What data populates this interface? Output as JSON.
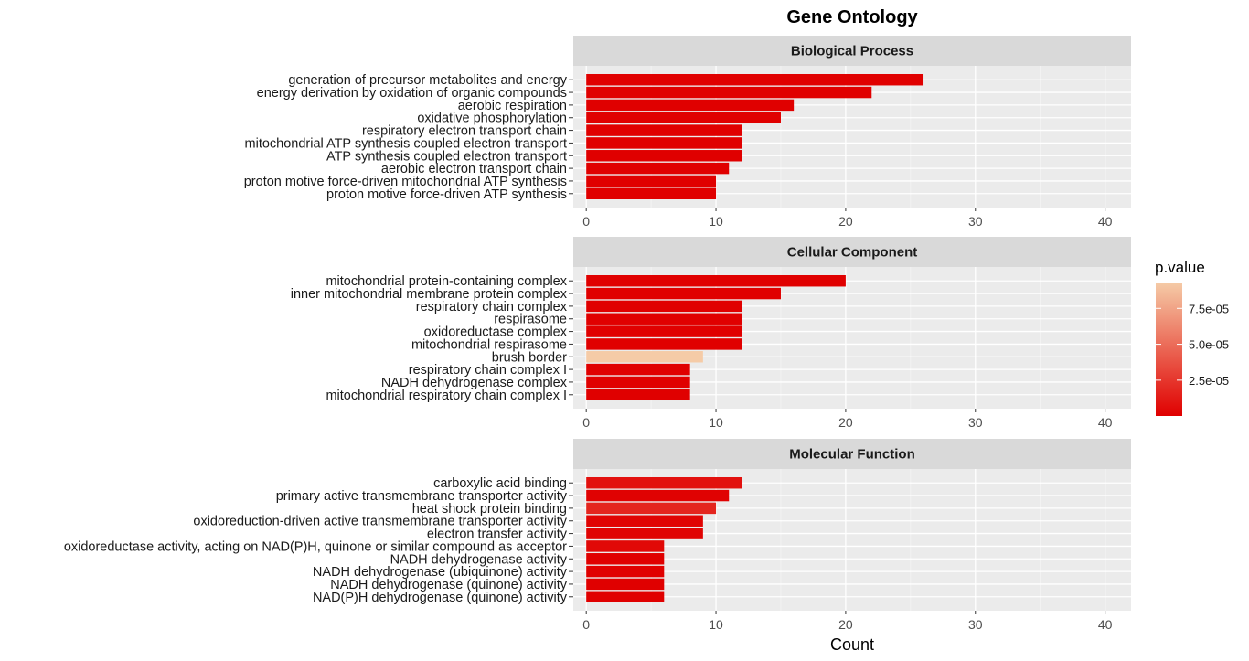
{
  "chart_data": {
    "type": "bar",
    "orientation": "horizontal",
    "title": "Gene Ontology",
    "xlabel": "Count",
    "xlim": [
      -1,
      42
    ],
    "xticks": [
      0,
      10,
      20,
      30,
      40
    ],
    "grid": true,
    "legend": {
      "title": "p.value",
      "position": "right",
      "type": "colorbar",
      "range": [
        1e-07,
        9.3e-05
      ],
      "ticks": [
        {
          "value": 2.5e-05,
          "label": "2.5e-05"
        },
        {
          "value": 5e-05,
          "label": "5.0e-05"
        },
        {
          "value": 7.5e-05,
          "label": "7.5e-05"
        }
      ],
      "color_low": "#e00000",
      "color_high": "#f5cba7"
    },
    "facets": [
      {
        "name": "Biological Process",
        "categories": [
          "generation of precursor metabolites and energy",
          "energy derivation by oxidation of organic compounds",
          "aerobic respiration",
          "oxidative phosphorylation",
          "respiratory electron transport chain",
          "mitochondrial ATP synthesis coupled electron transport",
          "ATP synthesis coupled electron transport",
          "aerobic electron transport chain",
          "proton motive force-driven mitochondrial ATP synthesis",
          "proton motive force-driven ATP synthesis"
        ],
        "values": [
          26,
          22,
          16,
          15,
          12,
          12,
          12,
          11,
          10,
          10
        ],
        "pvalues": [
          1e-07,
          1e-07,
          1e-07,
          1e-07,
          1e-07,
          1e-07,
          1e-07,
          1e-07,
          1e-07,
          1e-07
        ]
      },
      {
        "name": "Cellular Component",
        "categories": [
          "mitochondrial protein-containing complex",
          "inner mitochondrial membrane protein complex",
          "respiratory chain complex",
          "respirasome",
          "oxidoreductase complex",
          "mitochondrial respirasome",
          "brush border",
          "respiratory chain complex I",
          "NADH dehydrogenase complex",
          "mitochondrial respiratory chain complex I"
        ],
        "values": [
          20,
          15,
          12,
          12,
          12,
          12,
          9,
          8,
          8,
          8
        ],
        "pvalues": [
          1e-07,
          1e-07,
          1e-07,
          1e-07,
          1e-07,
          1e-07,
          9.3e-05,
          1e-07,
          1e-07,
          1e-07
        ]
      },
      {
        "name": "Molecular Function",
        "categories": [
          "carboxylic acid binding",
          "primary active transmembrane transporter activity",
          "heat shock protein binding",
          "oxidoreduction-driven active transmembrane transporter activity",
          "electron transfer activity",
          "oxidoreductase activity, acting on NAD(P)H, quinone or similar compound as acceptor",
          "NADH dehydrogenase activity",
          "NADH dehydrogenase (ubiquinone) activity",
          "NADH dehydrogenase (quinone) activity",
          "NAD(P)H dehydrogenase (quinone) activity"
        ],
        "values": [
          12,
          11,
          10,
          9,
          9,
          6,
          6,
          6,
          6,
          6
        ],
        "pvalues": [
          8e-06,
          1e-06,
          1.7e-05,
          2e-06,
          2e-06,
          4e-06,
          1e-07,
          1e-07,
          1e-07,
          1e-07
        ]
      }
    ]
  }
}
